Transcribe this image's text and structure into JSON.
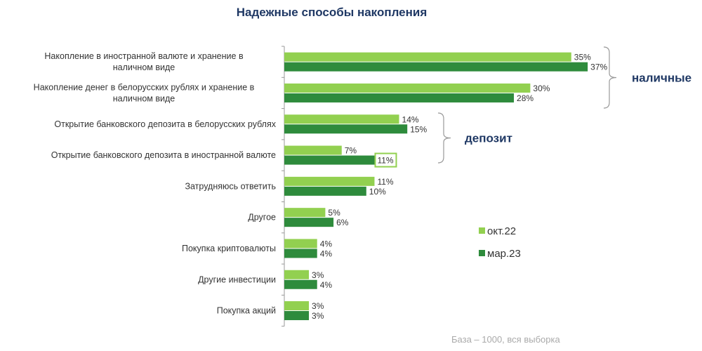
{
  "chart_data": {
    "type": "bar",
    "orientation": "horizontal",
    "title": "Надежные способы накопления",
    "categories": [
      "Накопление в иностранной валюте и хранение в наличном виде",
      "Накопление денег в белорусских рублях и хранение в наличном виде",
      "Открытие банковского депозита в белорусских рублях",
      "Открытие банковского депозита в иностранной валюте",
      "Затрудняюсь ответить",
      "Другое",
      "Покупка криптовалюты",
      "Другие инвестиции",
      "Покупка акций"
    ],
    "series": [
      {
        "name": "окт.22",
        "color": "#92d050",
        "values": [
          35,
          30,
          14,
          7,
          11,
          5,
          4,
          3,
          3
        ]
      },
      {
        "name": "мар.23",
        "color": "#2e8b3c",
        "values": [
          37,
          28,
          15,
          11,
          10,
          6,
          4,
          4,
          3
        ]
      }
    ],
    "value_suffix": "%",
    "highlight": {
      "series": 1,
      "category": 3,
      "color": "#92d050"
    },
    "groups": [
      {
        "label": "наличные",
        "categories": [
          0,
          1
        ]
      },
      {
        "label": "депозит",
        "categories": [
          2,
          3
        ]
      }
    ],
    "legend": "right-middle",
    "grid": false,
    "note": "База – 1000, вся выборка"
  }
}
